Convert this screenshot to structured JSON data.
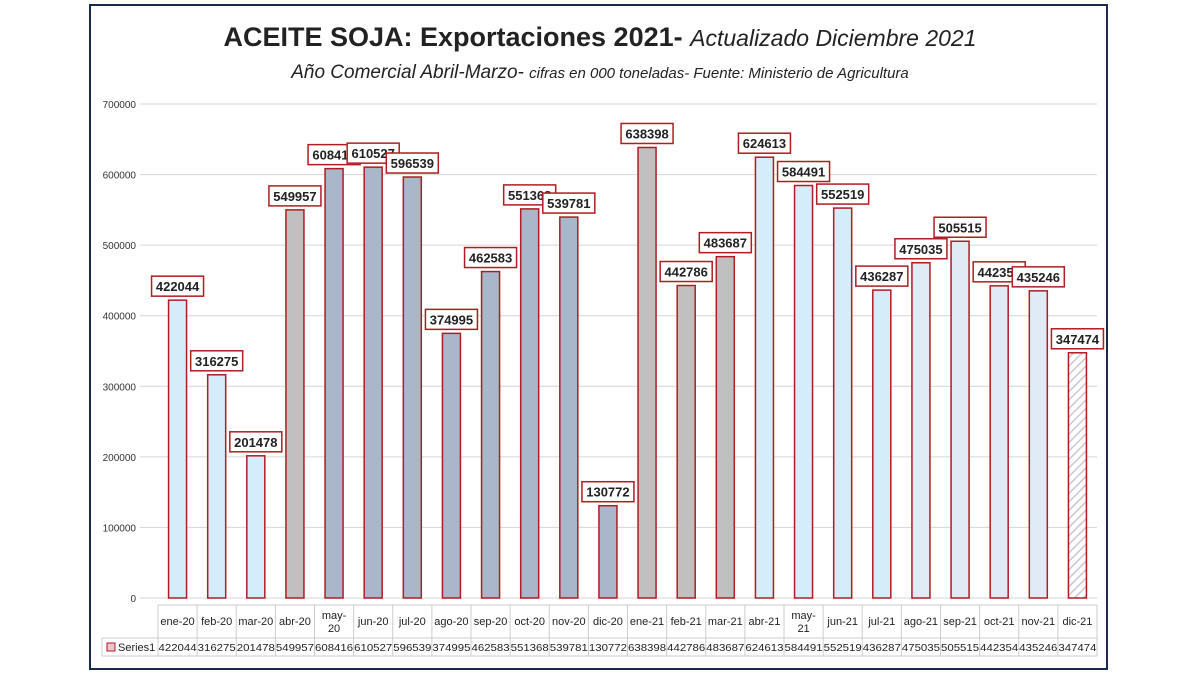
{
  "chart_data": {
    "type": "bar",
    "title": "ACEITE SOJA: Exportaciones 2021-",
    "title_suffix": "Actualizado Diciembre  2021",
    "subtitle_main": "Año Comercial Abril-Marzo-",
    "subtitle_small": "cifras en 000 toneladas- Fuente: Ministerio de Agricultura",
    "categories": [
      "ene-20",
      "feb-20",
      "mar-20",
      "abr-20",
      "may-20",
      "jun-20",
      "jul-20",
      "ago-20",
      "sep-20",
      "oct-20",
      "nov-20",
      "dic-20",
      "ene-21",
      "feb-21",
      "mar-21",
      "abr-21",
      "may-21",
      "jun-21",
      "jul-21",
      "ago-21",
      "sep-21",
      "oct-21",
      "nov-21",
      "dic-21"
    ],
    "series": [
      {
        "name": "Series1",
        "values": [
          422044,
          316275,
          201478,
          549957,
          608416,
          610527,
          596539,
          374995,
          462583,
          551368,
          539781,
          130772,
          638398,
          442786,
          483687,
          624613,
          584491,
          552519,
          436287,
          475035,
          505515,
          442354,
          435246,
          347474
        ]
      }
    ],
    "bar_colors": [
      "#d5ecfa",
      "#d5ecfa",
      "#d5ecfa",
      "#c0c0c0",
      "#aab6ca",
      "#aab6ca",
      "#aab6ca",
      "#aab6ca",
      "#aab6ca",
      "#aab6ca",
      "#aab6ca",
      "#aab6ca",
      "#c0c0c0",
      "#c0c0c0",
      "#c0c0c0",
      "#d5ecfa",
      "#d5ecfa",
      "#d5ecfa",
      "#d5ecfa",
      "#e0ebf6",
      "#e0ebf6",
      "#e0ebf6",
      "#e0ebf6",
      "hatched"
    ],
    "bar_border_color": "#b01c22",
    "ylim": [
      0,
      700000
    ],
    "yticks": [
      0,
      100000,
      200000,
      300000,
      400000,
      500000,
      600000,
      700000
    ],
    "grid": true,
    "data_table": true,
    "xlabel": "",
    "ylabel": ""
  }
}
